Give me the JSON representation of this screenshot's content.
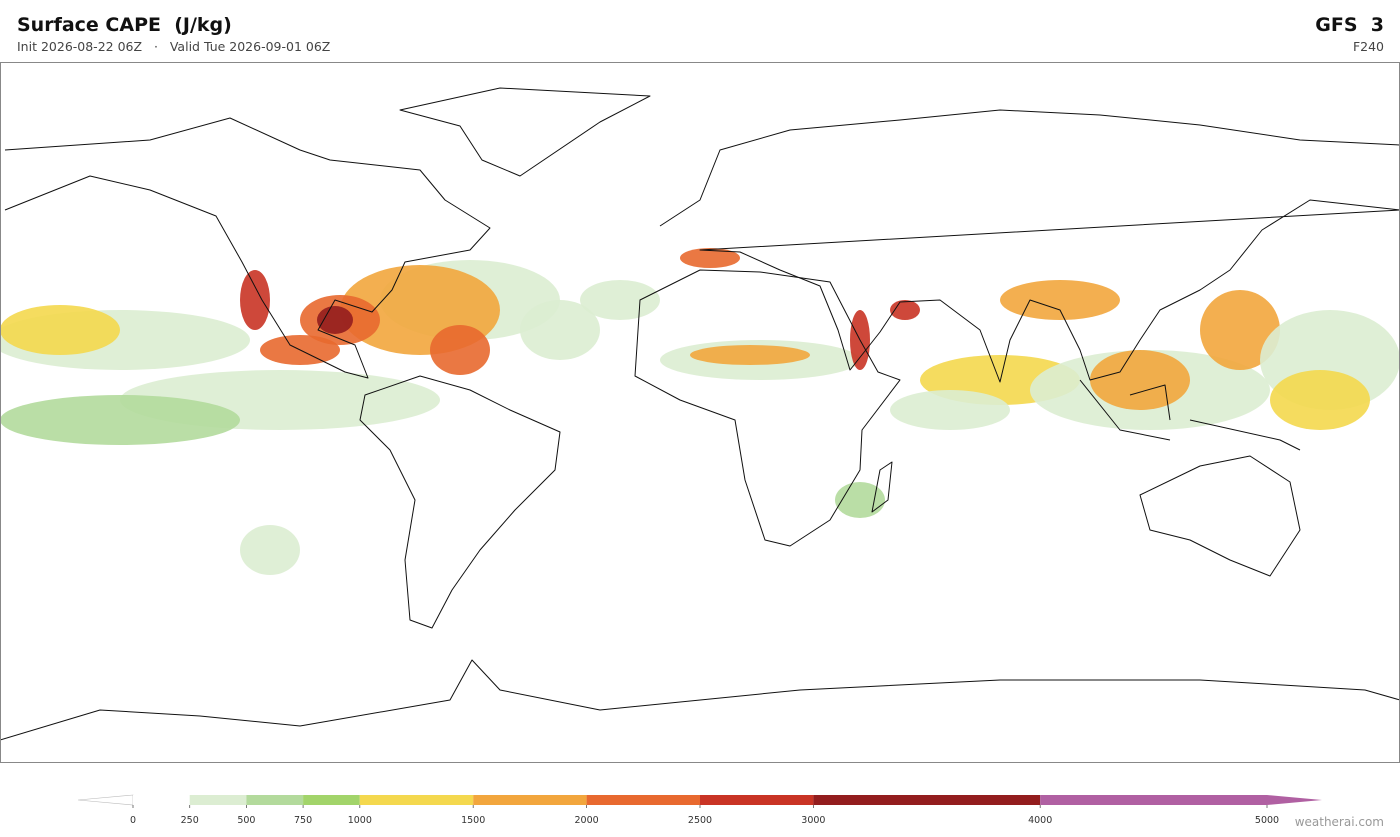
{
  "header": {
    "title": "Surface CAPE  (J/kg)",
    "subtitle": "Init 2026-08-22 06Z   ·   Valid Tue 2026-09-01 06Z",
    "model": "GFS  3",
    "forecast_hour": "F240"
  },
  "colorbar": {
    "ticks": [
      0,
      250,
      500,
      750,
      1000,
      1500,
      2000,
      2500,
      3000,
      4000,
      5000
    ],
    "colors": [
      "#ffffff",
      "#dcedd2",
      "#b3da9c",
      "#a2d46a",
      "#f4d84e",
      "#f2a63d",
      "#e8692f",
      "#c93425",
      "#931d1e",
      "#b060a2"
    ],
    "under_color": "#ffffff",
    "over_color": "#b060a2"
  },
  "footer": {
    "credit": "weatherai.com"
  }
}
